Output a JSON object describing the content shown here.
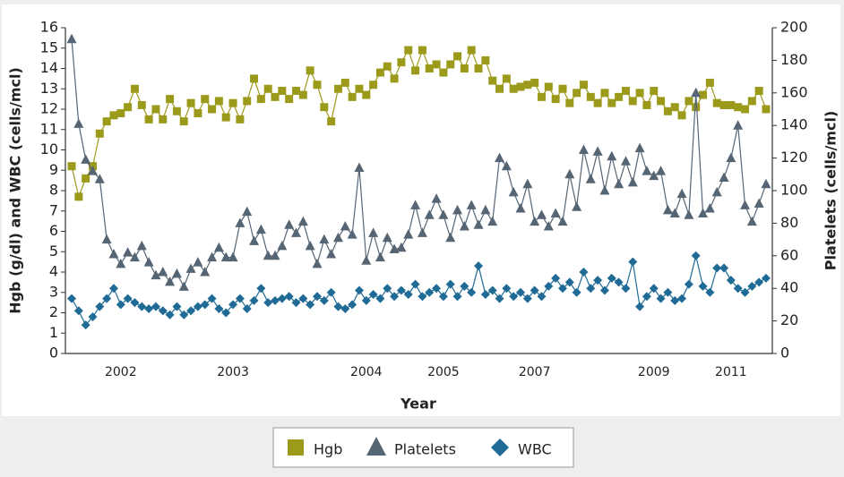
{
  "chart_data": {
    "type": "line",
    "xlabel": "Year",
    "ylabel": "Hgb (g/dl) and WBC (cells/mcl)",
    "y2label": "Platelets (cells/mcl)",
    "categories": [
      null,
      null,
      null,
      null,
      null,
      null,
      null,
      "2002",
      null,
      null,
      null,
      null,
      null,
      null,
      null,
      null,
      null,
      null,
      null,
      null,
      null,
      null,
      null,
      "2003",
      null,
      null,
      null,
      null,
      null,
      null,
      null,
      null,
      null,
      null,
      null,
      null,
      null,
      null,
      null,
      null,
      null,
      null,
      "2004",
      null,
      null,
      null,
      null,
      null,
      null,
      null,
      null,
      null,
      null,
      "2005",
      null,
      null,
      null,
      null,
      null,
      null,
      null,
      null,
      null,
      null,
      null,
      null,
      "2007",
      null,
      null,
      null,
      null,
      null,
      null,
      null,
      null,
      null,
      null,
      null,
      null,
      null,
      null,
      null,
      null,
      "2009",
      null,
      null,
      null,
      null,
      null,
      null,
      null,
      null,
      null,
      null,
      "2011",
      null,
      null,
      null,
      null,
      null
    ],
    "ylim": [
      0,
      16
    ],
    "yticks": [
      0,
      1,
      2,
      3,
      4,
      5,
      6,
      7,
      8,
      9,
      10,
      11,
      12,
      13,
      14,
      15,
      16
    ],
    "y2lim": [
      0,
      200
    ],
    "y2ticks": [
      0,
      20,
      40,
      60,
      80,
      100,
      120,
      140,
      160,
      180,
      200
    ],
    "legend": "bottom",
    "series": [
      {
        "name": "Hgb",
        "color": "#9c9a1b",
        "marker": "square",
        "values": [
          9.2,
          7.7,
          8.6,
          9.2,
          10.8,
          11.4,
          11.7,
          11.8,
          12.1,
          13.0,
          12.2,
          11.5,
          12.0,
          11.5,
          12.5,
          11.9,
          11.4,
          12.3,
          11.8,
          12.5,
          12.0,
          12.4,
          11.6,
          12.3,
          11.5,
          12.4,
          13.5,
          12.5,
          13.0,
          12.6,
          12.9,
          12.5,
          12.9,
          12.7,
          13.9,
          13.2,
          12.1,
          11.4,
          13.0,
          13.3,
          12.6,
          13.0,
          12.7,
          13.2,
          13.8,
          14.1,
          13.5,
          14.3,
          14.9,
          13.9,
          14.9,
          14.0,
          14.2,
          13.8,
          14.2,
          14.6,
          14.0,
          14.9,
          14.0,
          14.4,
          13.4,
          13.0,
          13.5,
          13.0,
          13.1,
          13.2,
          13.3,
          12.6,
          13.1,
          12.5,
          13.0,
          12.3,
          12.8,
          13.2,
          12.6,
          12.3,
          12.8,
          12.3,
          12.6,
          12.9,
          12.4,
          12.8,
          12.2,
          12.9,
          12.4,
          11.9,
          12.1,
          11.7,
          12.4,
          12.1,
          12.7,
          13.3,
          12.3,
          12.2,
          12.2,
          12.1,
          12.0,
          12.4,
          12.9,
          12.0
        ]
      },
      {
        "name": "Platelets",
        "color": "#566574",
        "marker": "triangle",
        "axis": "y2",
        "values": [
          193,
          141,
          119,
          112,
          107,
          70,
          61,
          55,
          62,
          59,
          66,
          56,
          48,
          50,
          44,
          49,
          41,
          52,
          56,
          50,
          59,
          65,
          59,
          59,
          80,
          87,
          69,
          76,
          60,
          60,
          66,
          79,
          74,
          81,
          66,
          55,
          70,
          61,
          71,
          78,
          73,
          114,
          57,
          74,
          59,
          71,
          64,
          65,
          73,
          91,
          74,
          85,
          95,
          85,
          71,
          88,
          78,
          91,
          79,
          88,
          81,
          120,
          115,
          99,
          89,
          104,
          81,
          85,
          78,
          86,
          81,
          110,
          90,
          125,
          107,
          124,
          100,
          121,
          104,
          118,
          105,
          126,
          112,
          109,
          112,
          88,
          86,
          98,
          85,
          160,
          86,
          89,
          99,
          108,
          120,
          140,
          91,
          81,
          92,
          104
        ]
      },
      {
        "name": "WBC",
        "color": "#1f6b96",
        "marker": "diamond",
        "values": [
          2.7,
          2.1,
          1.4,
          1.8,
          2.3,
          2.7,
          3.2,
          2.4,
          2.7,
          2.5,
          2.3,
          2.2,
          2.3,
          2.1,
          1.9,
          2.3,
          1.9,
          2.1,
          2.3,
          2.4,
          2.7,
          2.2,
          2.0,
          2.4,
          2.7,
          2.2,
          2.6,
          3.2,
          2.5,
          2.6,
          2.7,
          2.8,
          2.5,
          2.7,
          2.4,
          2.8,
          2.6,
          3.0,
          2.3,
          2.2,
          2.4,
          3.1,
          2.6,
          2.9,
          2.7,
          3.2,
          2.8,
          3.1,
          2.9,
          3.4,
          2.8,
          3.0,
          3.2,
          2.8,
          3.4,
          2.8,
          3.3,
          3.0,
          4.3,
          2.9,
          3.1,
          2.7,
          3.2,
          2.8,
          3.0,
          2.7,
          3.1,
          2.8,
          3.3,
          3.7,
          3.2,
          3.5,
          3.0,
          4.0,
          3.2,
          3.6,
          3.1,
          3.7,
          3.5,
          3.2,
          4.5,
          2.3,
          2.8,
          3.2,
          2.7,
          3.0,
          2.6,
          2.7,
          3.4,
          4.8,
          3.3,
          3.0,
          4.2,
          4.2,
          3.6,
          3.2,
          3.0,
          3.3,
          3.5,
          3.7
        ]
      }
    ]
  }
}
